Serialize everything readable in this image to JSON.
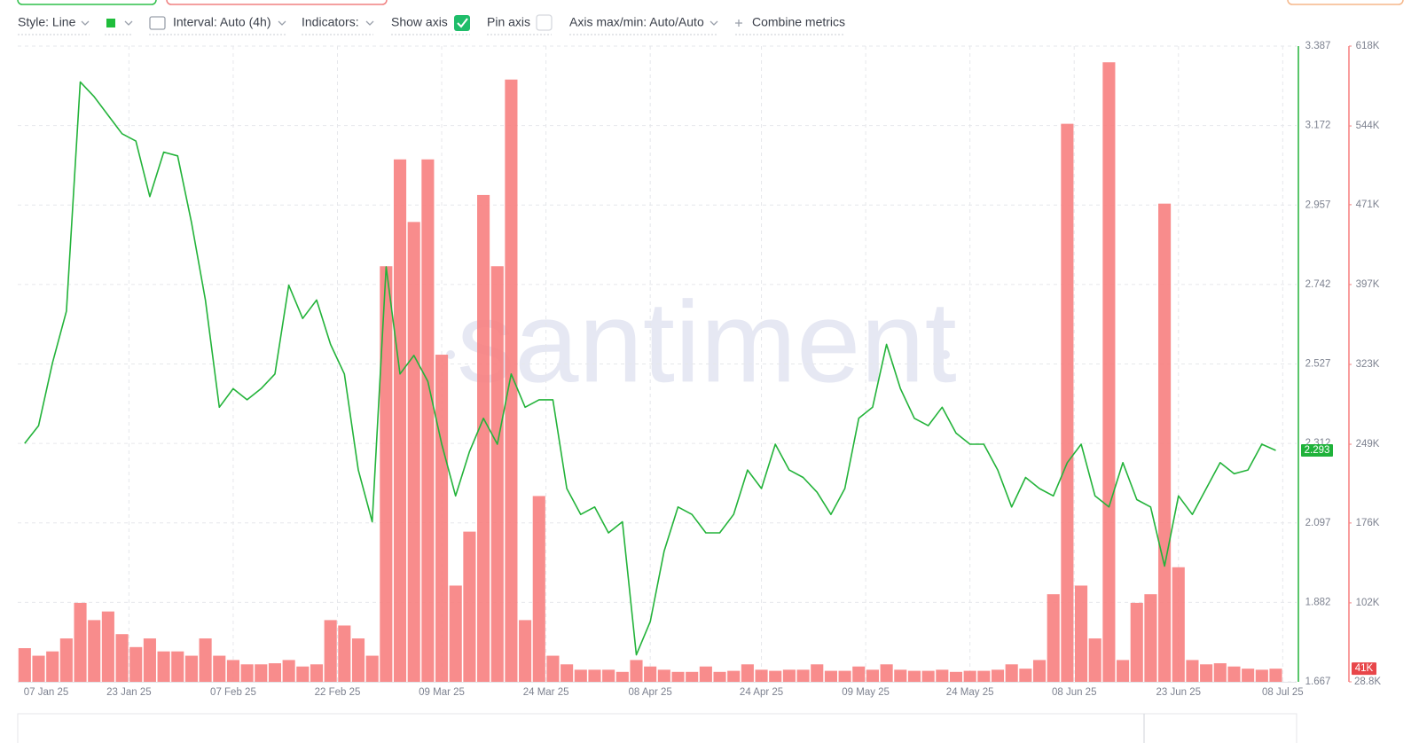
{
  "toolbar": {
    "style": "Style: Line",
    "interval": "Interval: Auto (4h)",
    "indicators": "Indicators:",
    "show_axis": "Show axis",
    "pin_axis": "Pin axis",
    "axis_minmax": "Axis max/min: Auto/Auto",
    "combine": "Combine metrics"
  },
  "watermark": "santiment",
  "chart_data": {
    "type": "line",
    "x": [
      "2025-01-08",
      "2025-01-10",
      "2025-01-12",
      "2025-01-14",
      "2025-01-16",
      "2025-01-18",
      "2025-01-20",
      "2025-01-22",
      "2025-01-24",
      "2025-01-26",
      "2025-01-28",
      "2025-01-30",
      "2025-02-01",
      "2025-02-03",
      "2025-02-05",
      "2025-02-07",
      "2025-02-09",
      "2025-02-11",
      "2025-02-13",
      "2025-02-15",
      "2025-02-17",
      "2025-02-19",
      "2025-02-21",
      "2025-02-23",
      "2025-02-25",
      "2025-02-27",
      "2025-03-01",
      "2025-03-03",
      "2025-03-05",
      "2025-03-07",
      "2025-03-09",
      "2025-03-11",
      "2025-03-13",
      "2025-03-15",
      "2025-03-17",
      "2025-03-19",
      "2025-03-21",
      "2025-03-23",
      "2025-03-25",
      "2025-03-27",
      "2025-03-29",
      "2025-03-31",
      "2025-04-02",
      "2025-04-04",
      "2025-04-06",
      "2025-04-08",
      "2025-04-10",
      "2025-04-12",
      "2025-04-14",
      "2025-04-16",
      "2025-04-18",
      "2025-04-20",
      "2025-04-22",
      "2025-04-24",
      "2025-04-26",
      "2025-04-28",
      "2025-04-30",
      "2025-05-02",
      "2025-05-04",
      "2025-05-06",
      "2025-05-08",
      "2025-05-10",
      "2025-05-12",
      "2025-05-14",
      "2025-05-16",
      "2025-05-18",
      "2025-05-20",
      "2025-05-22",
      "2025-05-24",
      "2025-05-26",
      "2025-05-28",
      "2025-05-30",
      "2025-06-01",
      "2025-06-03",
      "2025-06-05",
      "2025-06-07",
      "2025-06-09",
      "2025-06-11",
      "2025-06-13",
      "2025-06-15",
      "2025-06-17",
      "2025-06-19",
      "2025-06-21",
      "2025-06-23",
      "2025-06-25",
      "2025-06-27",
      "2025-06-29",
      "2025-07-01",
      "2025-07-03",
      "2025-07-05",
      "2025-07-07"
    ],
    "xlim": [
      "2025-01-07",
      "2025-07-10"
    ],
    "xticks": [
      {
        "value": "2025-01-07",
        "label": "07 Jan 25"
      },
      {
        "value": "2025-01-23",
        "label": "23 Jan 25"
      },
      {
        "value": "2025-02-07",
        "label": "07 Feb 25"
      },
      {
        "value": "2025-02-22",
        "label": "22 Feb 25"
      },
      {
        "value": "2025-03-09",
        "label": "09 Mar 25"
      },
      {
        "value": "2025-03-24",
        "label": "24 Mar 25"
      },
      {
        "value": "2025-04-08",
        "label": "08 Apr 25"
      },
      {
        "value": "2025-04-24",
        "label": "24 Apr 25"
      },
      {
        "value": "2025-05-09",
        "label": "09 May 25"
      },
      {
        "value": "2025-05-24",
        "label": "24 May 25"
      },
      {
        "value": "2025-06-08",
        "label": "08 Jun 25"
      },
      {
        "value": "2025-06-23",
        "label": "23 Jun 25"
      },
      {
        "value": "2025-07-08",
        "label": "08 Jul 25"
      }
    ],
    "ylim": [
      1.667,
      3.387
    ],
    "yticks": [
      1.667,
      1.882,
      2.097,
      2.312,
      2.527,
      2.742,
      2.957,
      3.172,
      3.387
    ],
    "y2lim": [
      28800,
      618000
    ],
    "y2ticks": [
      {
        "value": 28800,
        "label": "28.8K"
      },
      {
        "value": 102000,
        "label": "102K"
      },
      {
        "value": 176000,
        "label": "176K"
      },
      {
        "value": 249000,
        "label": "249K"
      },
      {
        "value": 323000,
        "label": "323K"
      },
      {
        "value": 397000,
        "label": "397K"
      },
      {
        "value": 471000,
        "label": "471K"
      },
      {
        "value": 544000,
        "label": "544K"
      },
      {
        "value": 618000,
        "label": "618K"
      }
    ],
    "grid": true,
    "series": [
      {
        "color": "#23b33a",
        "axis": "y",
        "current_label": "2.293",
        "values": [
          2.312,
          2.36,
          2.53,
          2.67,
          3.29,
          3.25,
          3.2,
          3.15,
          3.13,
          2.98,
          3.1,
          3.09,
          2.91,
          2.7,
          2.41,
          2.46,
          2.43,
          2.46,
          2.5,
          2.74,
          2.65,
          2.7,
          2.58,
          2.5,
          2.24,
          2.1,
          2.79,
          2.5,
          2.55,
          2.48,
          2.31,
          2.17,
          2.29,
          2.38,
          2.31,
          2.5,
          2.41,
          2.43,
          2.43,
          2.19,
          2.12,
          2.14,
          2.07,
          2.1,
          1.74,
          1.83,
          2.02,
          2.14,
          2.12,
          2.07,
          2.07,
          2.12,
          2.24,
          2.19,
          2.31,
          2.24,
          2.22,
          2.18,
          2.12,
          2.19,
          2.38,
          2.41,
          2.58,
          2.46,
          2.38,
          2.36,
          2.41,
          2.34,
          2.31,
          2.31,
          2.24,
          2.14,
          2.22,
          2.19,
          2.17,
          2.26,
          2.31,
          2.17,
          2.14,
          2.26,
          2.16,
          2.14,
          1.98,
          2.17,
          2.12,
          2.19,
          2.26,
          2.23,
          2.24,
          2.31,
          2.293
        ]
      },
      {
        "type": "bar",
        "color": "#f77f7f",
        "axis": "y2",
        "current_label": "41K",
        "values": [
          60000,
          53000,
          57000,
          69000,
          102000,
          86000,
          94000,
          73000,
          61000,
          69000,
          57000,
          57000,
          53000,
          69000,
          53000,
          49000,
          45000,
          45000,
          46000,
          49000,
          43000,
          45000,
          86000,
          81000,
          69000,
          53000,
          414000,
          513000,
          455000,
          513000,
          332000,
          118000,
          168000,
          480000,
          414000,
          587000,
          86000,
          201000,
          53000,
          45000,
          40000,
          40000,
          40000,
          38000,
          49000,
          43000,
          40000,
          38000,
          38000,
          43000,
          38000,
          39000,
          45000,
          40000,
          39000,
          40000,
          40000,
          45000,
          39000,
          39000,
          43000,
          40000,
          45000,
          40000,
          39000,
          39000,
          40000,
          38000,
          39000,
          39000,
          40000,
          45000,
          41000,
          49000,
          110000,
          546000,
          118000,
          69000,
          603000,
          49000,
          102000,
          110000,
          472000,
          135000,
          49000,
          45000,
          46000,
          43000,
          41000,
          40000,
          41000
        ]
      }
    ]
  }
}
